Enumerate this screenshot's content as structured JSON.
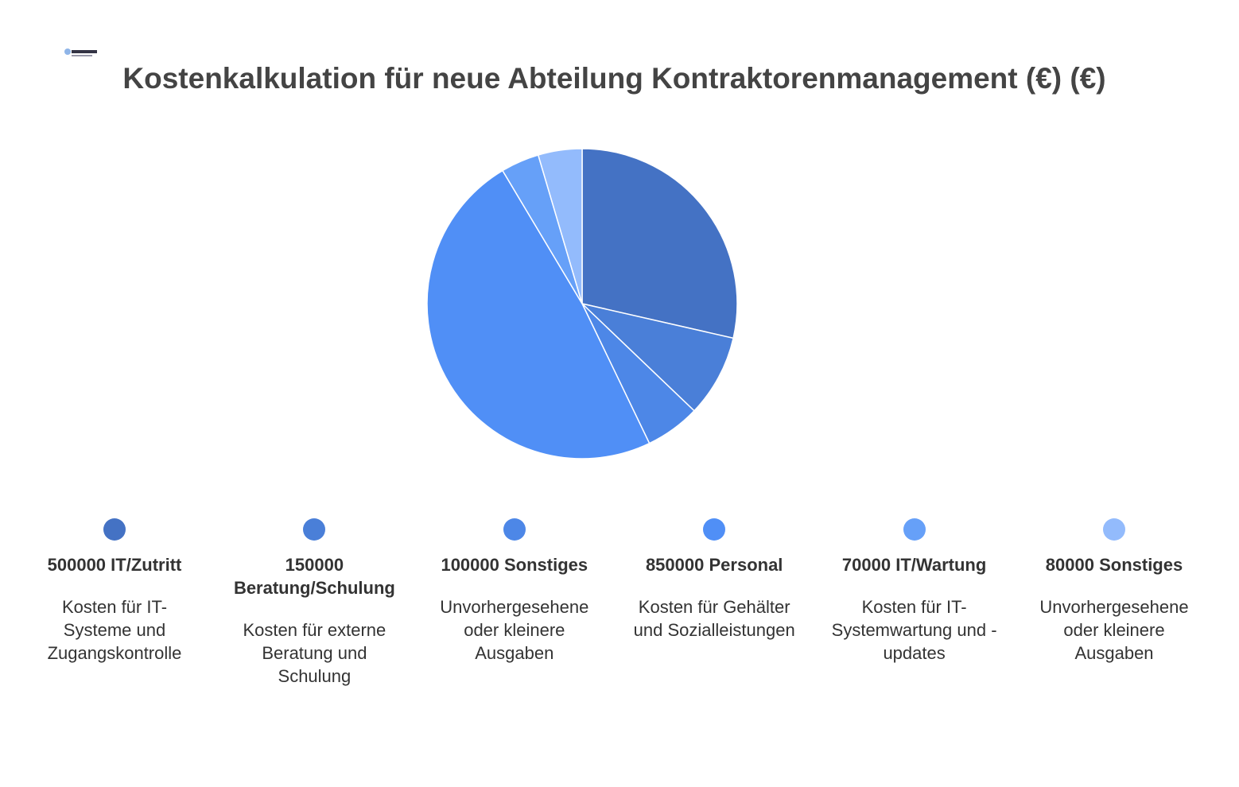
{
  "chart_data": {
    "type": "pie",
    "title": "Kostenkalkulation für neue Abteilung Kontraktorenmanagement (€) (€)",
    "categories": [
      "IT/Zutritt",
      "Beratung/Schulung",
      "Sonstiges",
      "Personal",
      "IT/Wartung",
      "Sonstiges"
    ],
    "values": [
      500000,
      150000,
      100000,
      850000,
      70000,
      80000
    ],
    "descriptions": [
      "Kosten für IT-Systeme und Zugangskontrolle",
      "Kosten für externe Beratung und Schulung",
      "Unvorhergesehene oder kleinere Ausgaben",
      "Kosten für Gehälter und Sozialleistungen",
      "Kosten für IT-Systemwartung und -updates",
      "Unvorhergesehene oder kleinere Ausgaben"
    ],
    "colors": [
      "#4472c4",
      "#4a7fd8",
      "#4d87e7",
      "#508ff6",
      "#66a0f8",
      "#93bbfc"
    ],
    "legend": "bottom"
  }
}
